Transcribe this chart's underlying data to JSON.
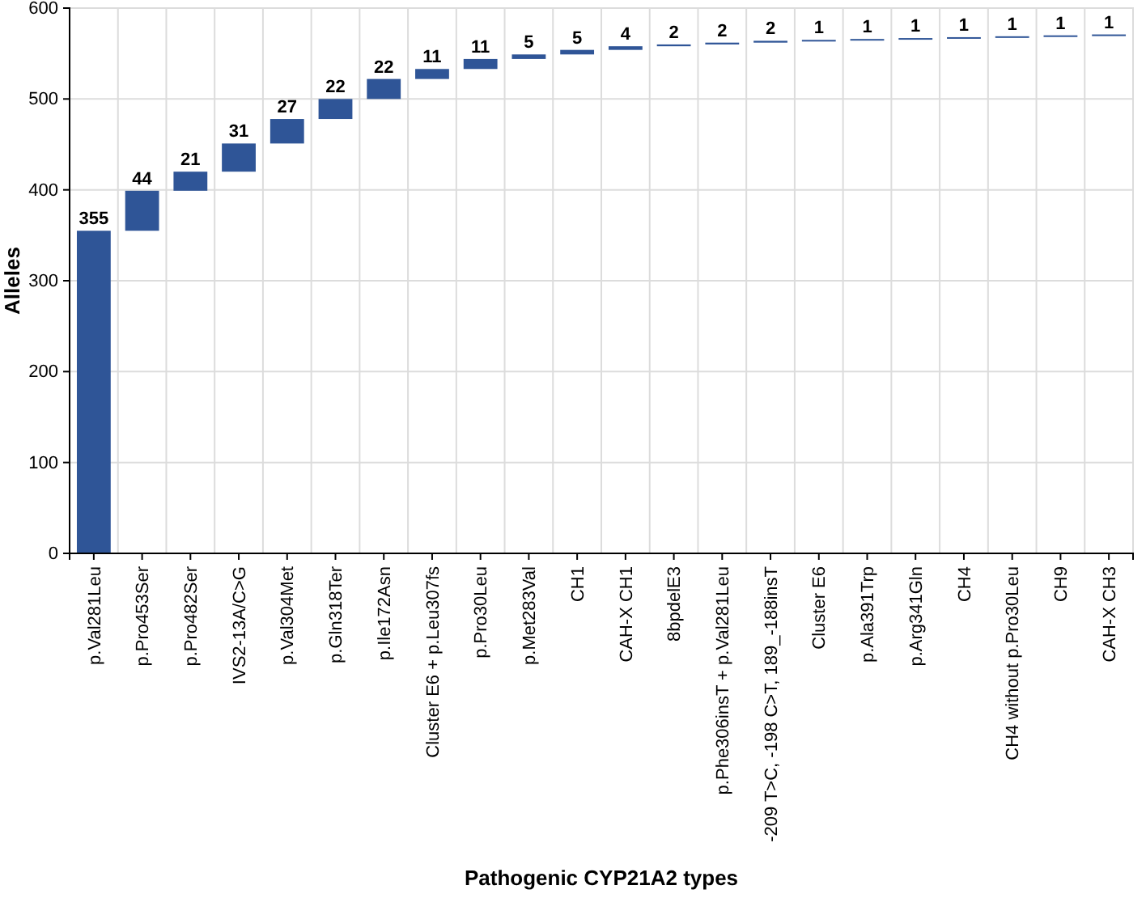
{
  "chart_data": {
    "type": "bar",
    "xlabel": "Pathogenic CYP21A2 types",
    "ylabel": "Alleles",
    "categories": [
      "p.Val281Leu",
      "p.Pro453Ser",
      "p.Pro482Ser",
      "IVS2-13A/C>G",
      "p.Val304Met",
      "p.Gln318Ter",
      "p.Ile172Asn",
      "Cluster E6 + p.Leu307fs",
      "p.Pro30Leu",
      "p.Met283Val",
      "CH1",
      "CAH-X CH1",
      "8bpdelE3",
      "p.Phe306insT + p.Val281Leu",
      "-209 T>C, -198 C>T, 189_-188insT",
      "Cluster E6",
      "p.Ala391Trp",
      "p.Arg341Gln",
      "CH4",
      "CH4 without p.Pro30Leu",
      "CH9",
      "CAH-X CH3"
    ],
    "values": [
      355,
      44,
      21,
      31,
      27,
      22,
      22,
      11,
      11,
      5,
      5,
      4,
      2,
      2,
      2,
      1,
      1,
      1,
      1,
      1,
      1,
      1
    ],
    "base": [
      0,
      355,
      399,
      420,
      451,
      478,
      500,
      522,
      533,
      544,
      549,
      554,
      558,
      560,
      562,
      564,
      565,
      566,
      567,
      568,
      569,
      570
    ],
    "color": "#2f5597",
    "ylim": [
      0,
      600
    ],
    "yticks": [
      0,
      100,
      200,
      300,
      400,
      500,
      600
    ],
    "grid": true,
    "data_labels": true
  }
}
